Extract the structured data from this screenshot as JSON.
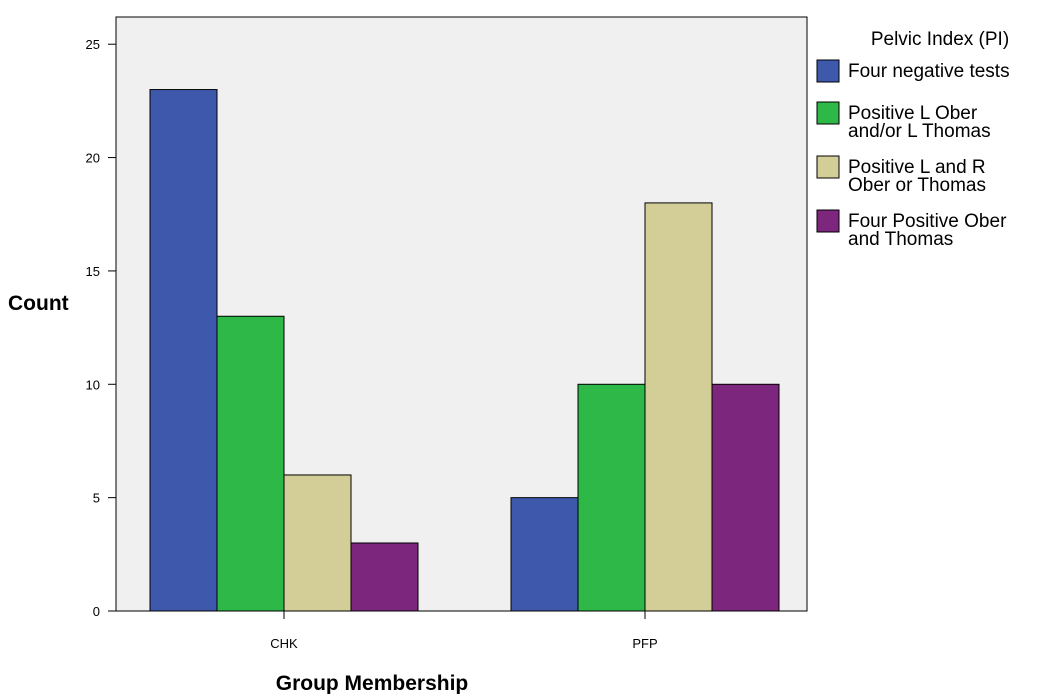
{
  "chart_data": {
    "type": "bar",
    "title": "",
    "xlabel": "Group Membership",
    "ylabel": "Count",
    "categories": [
      "CHK",
      "PFP"
    ],
    "ylim": [
      0,
      26.2
    ],
    "yticks": [
      "0",
      "5",
      "10",
      "15",
      "20",
      "25"
    ],
    "legend_title": "Pelvic Index (PI)",
    "legend_position": "right",
    "grid": false,
    "background": "#f0f0f0",
    "series": [
      {
        "name": "Four negative tests",
        "label_lines": [
          "Four negative tests"
        ],
        "color": "#3e58ac",
        "values": [
          23,
          5
        ]
      },
      {
        "name": "Positive L Ober and/or L Thomas",
        "label_lines": [
          "Positive L Ober",
          "and/or L Thomas"
        ],
        "color": "#2eb848",
        "values": [
          13,
          10
        ]
      },
      {
        "name": "Positive L and R Ober or Thomas",
        "label_lines": [
          "Positive L and R",
          "Ober or Thomas"
        ],
        "color": "#d3ce97",
        "values": [
          6,
          18
        ]
      },
      {
        "name": "Four Positive Ober and Thomas",
        "label_lines": [
          "Four Positive Ober",
          "and Thomas"
        ],
        "color": "#7c277d",
        "values": [
          3,
          10
        ]
      }
    ]
  }
}
